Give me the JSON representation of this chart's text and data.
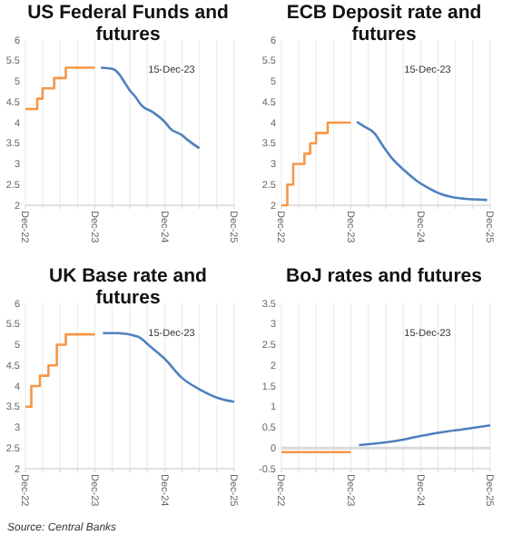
{
  "chart_data": [
    {
      "type": "line",
      "title": "US Federal Funds and futures",
      "xlim": [
        "2022-12",
        "2025-12"
      ],
      "ylim": [
        2,
        6
      ],
      "yticks": [
        2,
        2.5,
        3,
        3.5,
        4,
        4.5,
        5,
        5.5,
        6
      ],
      "xticks": [
        {
          "value": "2022-12",
          "label": "Dec-22"
        },
        {
          "value": "2023-03",
          "label": null
        },
        {
          "value": "2023-06",
          "label": null
        },
        {
          "value": "2023-09",
          "label": null
        },
        {
          "value": "2023-12",
          "label": "Dec-23"
        },
        {
          "value": "2024-03",
          "label": null
        },
        {
          "value": "2024-06",
          "label": null
        },
        {
          "value": "2024-09",
          "label": null
        },
        {
          "value": "2024-12",
          "label": "Dec-24"
        },
        {
          "value": "2025-03",
          "label": null
        },
        {
          "value": "2025-06",
          "label": null
        },
        {
          "value": "2025-09",
          "label": null
        },
        {
          "value": "2025-12",
          "label": "Dec-25"
        }
      ],
      "grid": "x",
      "annotations": [
        "15-Dec-23"
      ],
      "series": [
        {
          "type": "step",
          "color": "#f79646",
          "x": [
            "2022-12",
            "2023-02",
            "2023-03",
            "2023-05",
            "2023-07",
            "2023-12"
          ],
          "values": [
            4.33,
            4.58,
            4.83,
            5.08,
            5.33,
            5.33
          ]
        },
        {
          "type": "line",
          "color": "#4f81bd",
          "x": [
            "2024-01",
            "2024-03",
            "2024-04",
            "2024-05",
            "2024-06",
            "2024-07",
            "2024-08",
            "2024-10",
            "2024-12",
            "2025-01",
            "2025-03",
            "2025-04",
            "2025-06"
          ],
          "values": [
            5.33,
            5.3,
            5.2,
            5.0,
            4.78,
            4.62,
            4.42,
            4.25,
            4.02,
            3.85,
            3.7,
            3.58,
            3.38
          ]
        }
      ]
    },
    {
      "type": "line",
      "title": "ECB Deposit rate and futures",
      "xlim": [
        "2022-12",
        "2025-12"
      ],
      "ylim": [
        2,
        6
      ],
      "yticks": [
        2,
        2.5,
        3,
        3.5,
        4,
        4.5,
        5,
        5.5,
        6
      ],
      "xticks": [
        {
          "value": "2022-12",
          "label": "Dec-22"
        },
        {
          "value": "2023-03",
          "label": null
        },
        {
          "value": "2023-06",
          "label": null
        },
        {
          "value": "2023-09",
          "label": null
        },
        {
          "value": "2023-12",
          "label": "Dec-23"
        },
        {
          "value": "2024-03",
          "label": null
        },
        {
          "value": "2024-06",
          "label": null
        },
        {
          "value": "2024-09",
          "label": null
        },
        {
          "value": "2024-12",
          "label": "Dec-24"
        },
        {
          "value": "2025-03",
          "label": null
        },
        {
          "value": "2025-06",
          "label": null
        },
        {
          "value": "2025-09",
          "label": null
        },
        {
          "value": "2025-12",
          "label": "Dec-25"
        }
      ],
      "grid": "x",
      "annotations": [
        "15-Dec-23"
      ],
      "series": [
        {
          "type": "step",
          "color": "#f79646",
          "x": [
            "2022-12",
            "2023-01",
            "2023-02",
            "2023-04",
            "2023-05",
            "2023-06",
            "2023-08",
            "2023-12"
          ],
          "values": [
            2.0,
            2.5,
            3.0,
            3.25,
            3.5,
            3.75,
            4.0,
            4.0
          ]
        },
        {
          "type": "line",
          "color": "#4f81bd",
          "x": [
            "2024-01",
            "2024-02-12",
            "2024-04",
            "2024-05-15",
            "2024-07",
            "2024-09-05",
            "2024-11-08",
            "2025-01-10",
            "2025-03-12",
            "2025-05-15",
            "2025-07-18",
            "2025-11-15"
          ],
          "values": [
            4.02,
            3.9,
            3.75,
            3.45,
            3.15,
            2.85,
            2.6,
            2.42,
            2.28,
            2.2,
            2.16,
            2.13
          ]
        }
      ]
    },
    {
      "type": "line",
      "title": "UK Base rate and futures",
      "xlim": [
        "2022-12",
        "2025-12"
      ],
      "ylim": [
        2,
        6
      ],
      "yticks": [
        2,
        2.5,
        3,
        3.5,
        4,
        4.5,
        5,
        5.5,
        6
      ],
      "xticks": [
        {
          "value": "2022-12",
          "label": "Dec-22"
        },
        {
          "value": "2023-03",
          "label": null
        },
        {
          "value": "2023-06",
          "label": null
        },
        {
          "value": "2023-09",
          "label": null
        },
        {
          "value": "2023-12",
          "label": "Dec-23"
        },
        {
          "value": "2024-03",
          "label": null
        },
        {
          "value": "2024-06",
          "label": null
        },
        {
          "value": "2024-09",
          "label": null
        },
        {
          "value": "2024-12",
          "label": "Dec-24"
        },
        {
          "value": "2025-03",
          "label": null
        },
        {
          "value": "2025-06",
          "label": null
        },
        {
          "value": "2025-09",
          "label": null
        },
        {
          "value": "2025-12",
          "label": "Dec-25"
        }
      ],
      "grid": "x",
      "annotations": [
        "15-Dec-23",
        "Source: Central Banks"
      ],
      "series": [
        {
          "type": "step",
          "color": "#f79646",
          "x": [
            "2022-12",
            "2023-01",
            "2023-02-15",
            "2023-04",
            "2023-05-15",
            "2023-07",
            "2023-12"
          ],
          "values": [
            3.5,
            4.0,
            4.25,
            4.5,
            5.0,
            5.25,
            5.25
          ]
        },
        {
          "type": "line",
          "color": "#4f81bd",
          "x": [
            "2024-01-12",
            "2024-04",
            "2024-07-12",
            "2024-09-18",
            "2024-12",
            "2025-03",
            "2025-06-10",
            "2025-09-15",
            "2025-12"
          ],
          "values": [
            5.28,
            5.28,
            5.2,
            4.95,
            4.66,
            4.2,
            3.9,
            3.7,
            3.62
          ]
        }
      ]
    },
    {
      "type": "line",
      "title": "BoJ rates and futures",
      "xlim": [
        "2022-12",
        "2025-12"
      ],
      "ylim": [
        -0.5,
        3.5
      ],
      "yticks": [
        -0.5,
        0,
        0.5,
        1,
        1.5,
        2,
        2.5,
        3,
        3.5
      ],
      "xticks": [
        {
          "value": "2022-12",
          "label": "Dec-22"
        },
        {
          "value": "2023-03",
          "label": null
        },
        {
          "value": "2023-06",
          "label": null
        },
        {
          "value": "2023-09",
          "label": null
        },
        {
          "value": "2023-12",
          "label": "Dec-23"
        },
        {
          "value": "2024-03",
          "label": null
        },
        {
          "value": "2024-06",
          "label": null
        },
        {
          "value": "2024-09",
          "label": null
        },
        {
          "value": "2024-12",
          "label": "Dec-24"
        },
        {
          "value": "2025-03",
          "label": null
        },
        {
          "value": "2025-06",
          "label": null
        },
        {
          "value": "2025-09",
          "label": null
        },
        {
          "value": "2025-12",
          "label": "Dec-25"
        }
      ],
      "grid": "x",
      "ref_lines": [
        {
          "axis": "y",
          "value": 0,
          "color": "#d9d9d9"
        }
      ],
      "annotations": [
        "15-Dec-23"
      ],
      "series": [
        {
          "type": "step",
          "color": "#f79646",
          "x": [
            "2022-12",
            "2023-12"
          ],
          "values": [
            -0.1,
            -0.1
          ]
        },
        {
          "type": "line",
          "color": "#4f81bd",
          "x": [
            "2024-01-12",
            "2024-08-05",
            "2024-11-28",
            "2025-03-18",
            "2025-07-25",
            "2025-12"
          ],
          "values": [
            0.07,
            0.18,
            0.29,
            0.38,
            0.46,
            0.55
          ]
        }
      ]
    }
  ]
}
